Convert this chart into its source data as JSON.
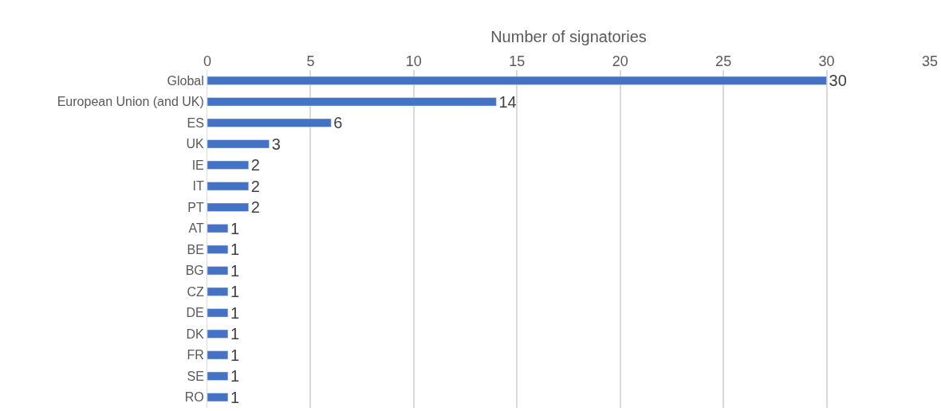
{
  "chart_data": {
    "type": "bar",
    "orientation": "horizontal",
    "xlabel": "Number of signatories",
    "categories": [
      "Global",
      "European Union (and UK)",
      "ES",
      "UK",
      "IE",
      "IT",
      "PT",
      "AT",
      "BE",
      "BG",
      "CZ",
      "DE",
      "DK",
      "FR",
      "SE",
      "RO"
    ],
    "values": [
      30,
      14,
      6,
      3,
      2,
      2,
      2,
      1,
      1,
      1,
      1,
      1,
      1,
      1,
      1,
      1
    ],
    "color": "#4472c4",
    "xlim": [
      0,
      35
    ],
    "xticks": [
      0,
      5,
      10,
      15,
      20,
      25,
      30,
      35
    ],
    "grid": "x",
    "data_labels": true
  }
}
